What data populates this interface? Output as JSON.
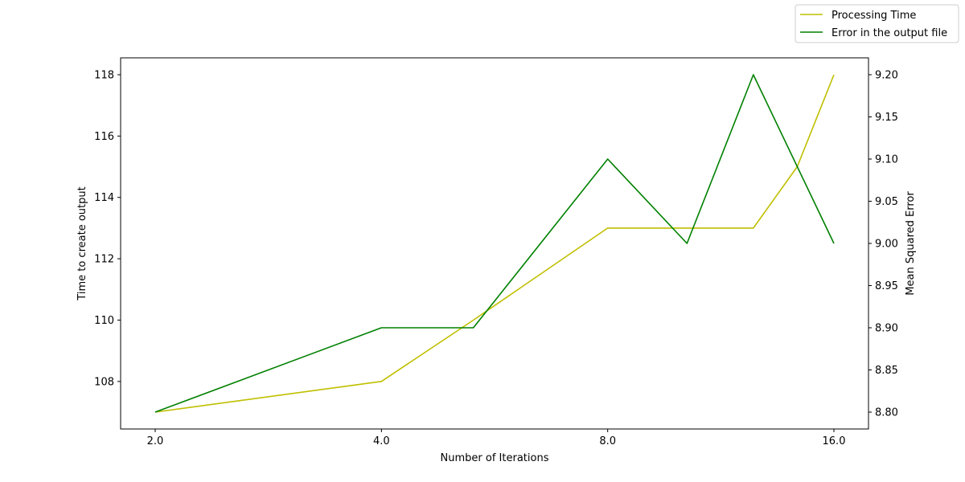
{
  "chart_data": {
    "type": "line",
    "x_scale": "log2",
    "x": [
      2.0,
      3.125,
      4.0,
      5.3,
      8.0,
      10.2,
      12.5,
      14.3,
      16.0
    ],
    "xticks": [
      "2.0",
      "4.0",
      "8.0",
      "16.0"
    ],
    "xlabel": "Number of Iterations",
    "ylabel_left": "Time to create output",
    "ylabel_right": "Mean Squared Error",
    "ylim_left": [
      106.45,
      118.55
    ],
    "ylim_right": [
      8.78,
      9.22
    ],
    "yticks_left": [
      "108",
      "110",
      "112",
      "114",
      "116",
      "118"
    ],
    "yticks_right": [
      "8.80",
      "8.85",
      "8.90",
      "8.95",
      "9.00",
      "9.05",
      "9.10",
      "9.15",
      "9.20"
    ],
    "grid": false,
    "legend_position": "top-right, above plot",
    "series": [
      {
        "name": "Processing Time",
        "axis": "left",
        "color": "#bfbf00",
        "x": [
          2.0,
          4.0,
          5.3,
          8.0,
          12.5,
          14.3,
          16.0
        ],
        "values": [
          107,
          108,
          110,
          113,
          113,
          115,
          118
        ]
      },
      {
        "name": "Error in the output file",
        "axis": "right",
        "color": "#008000",
        "x": [
          2.0,
          4.0,
          5.3,
          8.0,
          10.2,
          12.5,
          16.0
        ],
        "values": [
          8.8,
          8.9,
          8.9,
          9.1,
          9.0,
          9.2,
          9.0
        ]
      }
    ]
  }
}
